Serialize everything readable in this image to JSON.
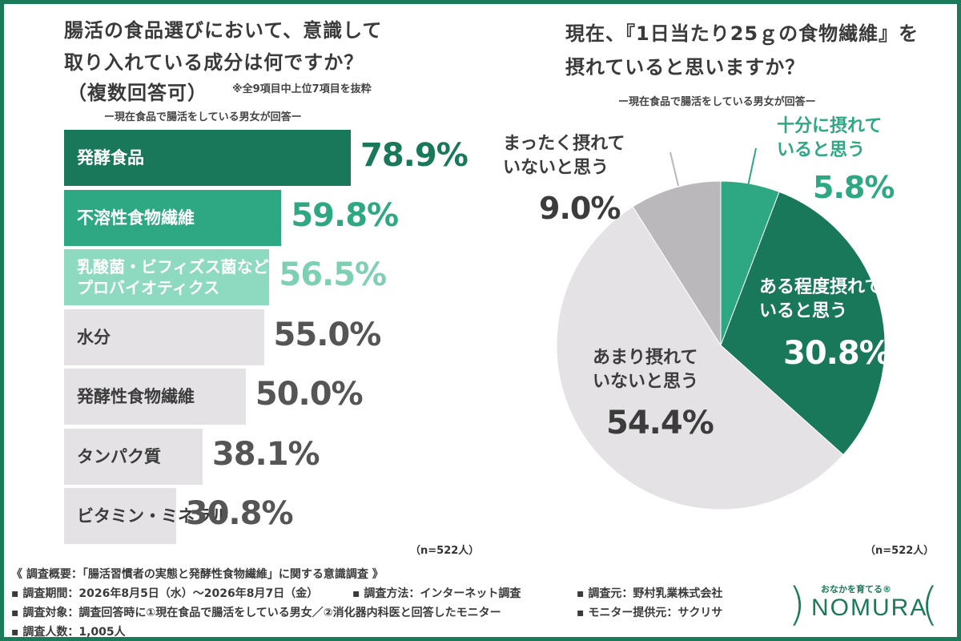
{
  "left": {
    "title_line1": "腸活の食品選びにおいて、意識して",
    "title_line2": "取り入れている成分は何ですか？",
    "title_line3": "（複数回答可）",
    "note": "※全9項目中上位7項目を抜粋",
    "subtitle": "ー現在食品で腸活をしている男女が回答ー",
    "n_label": "（n=522人）"
  },
  "right": {
    "title_line1": "現在、『1日当たり25ｇの食物繊維』を",
    "title_line2": "摂れていると思いますか？",
    "subtitle": "ー現在食品で腸活をしている男女が回答ー",
    "n_label": "（n=522人）"
  },
  "chart_data": [
    {
      "type": "bar",
      "orientation": "horizontal",
      "categories": [
        "発酵食品",
        "不溶性食物繊維",
        "乳酸菌・ビフィズス菌などのプロバイオティクス",
        "水分",
        "発酵性食物繊維",
        "タンパク質",
        "ビタミン・ミネラル"
      ],
      "labels": [
        [
          "発酵食品"
        ],
        [
          "不溶性食物繊維"
        ],
        [
          "乳酸菌・ビフィズス菌などの",
          "プロバイオティクス"
        ],
        [
          "水分"
        ],
        [
          "発酵性食物繊維"
        ],
        [
          "タンパク質"
        ],
        [
          "ビタミン・ミネラル"
        ]
      ],
      "values": [
        78.9,
        59.8,
        56.5,
        55.0,
        50.0,
        38.1,
        30.8
      ],
      "value_labels": [
        "78.9%",
        "59.8%",
        "56.5%",
        "55.0%",
        "50.0%",
        "38.1%",
        "30.8%"
      ],
      "colors": [
        "#19775a",
        "#2ea883",
        "#8edac0",
        "#e4e2e4",
        "#e4e2e4",
        "#e4e2e4",
        "#e4e2e4"
      ],
      "label_colors": [
        "#ffffff",
        "#ffffff",
        "#ffffff",
        "#3c3c3c",
        "#3c3c3c",
        "#3c3c3c",
        "#3c3c3c"
      ],
      "value_colors": [
        "#19775a",
        "#2ea883",
        "#7dd0b4",
        "#555555",
        "#555555",
        "#555555",
        "#555555"
      ]
    },
    {
      "type": "pie",
      "categories": [
        "十分に摂れていると思う",
        "ある程度摂れていると思う",
        "あまり摂れていないと思う",
        "まったく摂れていないと思う"
      ],
      "label_lines": [
        [
          "十分に摂れて",
          "いると思う"
        ],
        [
          "ある程度摂れて",
          "いると思う"
        ],
        [
          "あまり摂れて",
          "いないと思う"
        ],
        [
          "まったく摂れて",
          "いないと思う"
        ]
      ],
      "values": [
        5.8,
        30.8,
        54.4,
        9.0
      ],
      "value_labels": [
        "5.8%",
        "30.8%",
        "54.4%",
        "9.0%"
      ],
      "colors": [
        "#2ea883",
        "#19775a",
        "#e4e2e4",
        "#bab8bb"
      ],
      "start": "12 o'clock",
      "direction": "clockwise"
    }
  ],
  "footer": {
    "line1": "《 調査概要：「腸活習慣者の実態と発酵性食物繊維」に関する意識調査 》",
    "period": "▪ 調査期間：2026年8月5日（水）～2026年8月7日（金）",
    "method": "▪ 調査方法：インターネット調査",
    "source": "▪ 調査元：野村乳業株式会社",
    "target": "▪ 調査対象：調査回答時に①現在食品で腸活をしている男女／②消化器内科医と回答したモニター",
    "provider": "▪ モニター提供元：サクリサ",
    "count": "▪ 調査人数：1,005人"
  },
  "logo": {
    "tagline": "おなかを育てる®",
    "name": "NOMURA"
  }
}
